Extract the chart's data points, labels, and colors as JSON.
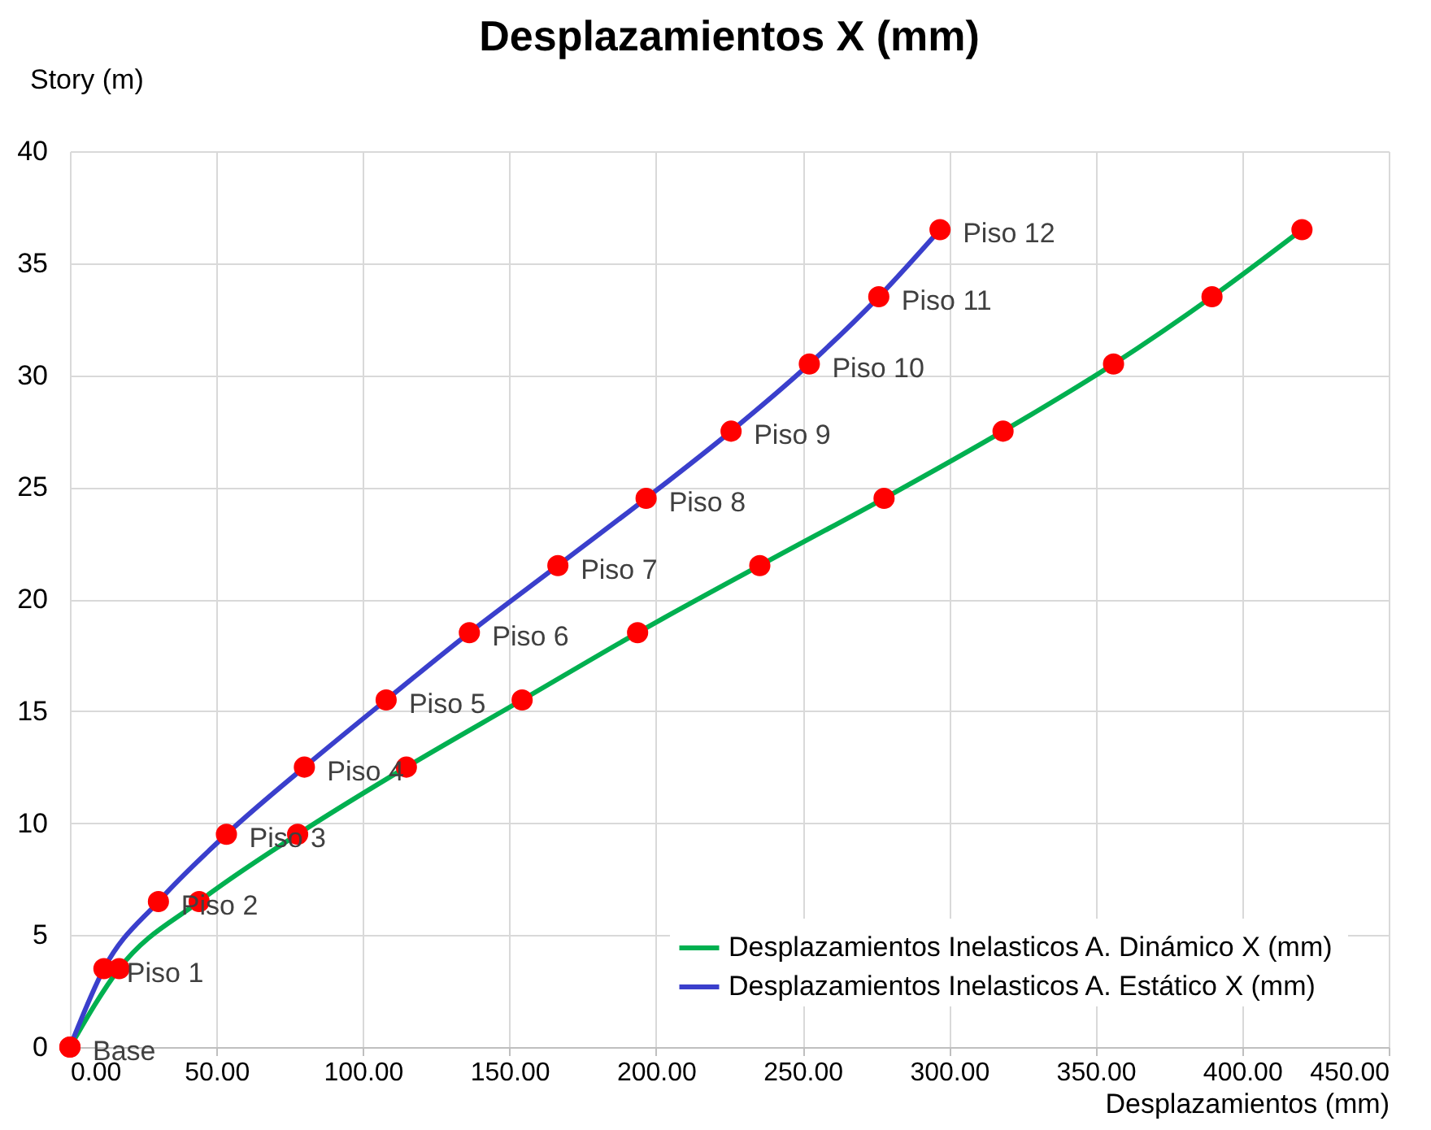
{
  "chart_data": {
    "type": "line",
    "title": "Desplazamientos X (mm)",
    "xlabel": "Desplazamientos (mm)",
    "ylabel": "Story (m)",
    "series": [
      {
        "name": "Desplazamientos Inelasticos A. Dinámico  X (mm)",
        "color": "#00b050",
        "x": [
          0,
          16.8,
          44.1,
          77.7,
          114.8,
          154.3,
          193.7,
          235.4,
          277.8,
          318.4,
          356.1,
          389.7,
          420.4
        ],
        "values": [
          0,
          3.5,
          6.5,
          9.5,
          12.5,
          15.5,
          18.5,
          21.5,
          24.5,
          27.5,
          30.5,
          33.5,
          36.5
        ]
      },
      {
        "name": "Desplazamientos Inelasticos A. Estático  X (mm)",
        "color": "#3a3fcc",
        "x": [
          0,
          11.6,
          30.2,
          53.4,
          80.0,
          107.9,
          136.3,
          166.5,
          196.6,
          225.6,
          252.3,
          276.0,
          296.9
        ],
        "values": [
          0,
          3.5,
          6.5,
          9.5,
          12.5,
          15.5,
          18.5,
          21.5,
          24.5,
          27.5,
          30.5,
          33.5,
          36.5
        ]
      }
    ],
    "annotations": [
      {
        "text": "Base",
        "x": 0,
        "y": 0
      },
      {
        "text": "Piso 1",
        "x": 11.6,
        "y": 3.5
      },
      {
        "text": "Piso 2",
        "x": 30.2,
        "y": 6.5
      },
      {
        "text": "Piso 3",
        "x": 53.4,
        "y": 9.5
      },
      {
        "text": "Piso 4",
        "x": 80.0,
        "y": 12.5
      },
      {
        "text": "Piso 5",
        "x": 107.9,
        "y": 15.5
      },
      {
        "text": "Piso 6",
        "x": 136.3,
        "y": 18.5
      },
      {
        "text": "Piso 7",
        "x": 166.5,
        "y": 21.5
      },
      {
        "text": "Piso 8",
        "x": 196.6,
        "y": 24.5
      },
      {
        "text": "Piso 9",
        "x": 225.6,
        "y": 27.5
      },
      {
        "text": "Piso 10",
        "x": 252.3,
        "y": 30.5
      },
      {
        "text": "Piso 11",
        "x": 276.0,
        "y": 33.5
      },
      {
        "text": "Piso 12",
        "x": 296.9,
        "y": 36.5
      }
    ],
    "xlim": [
      0,
      450
    ],
    "xticks": [
      {
        "value": 0,
        "label": "0.00"
      },
      {
        "value": 50,
        "label": "50.00"
      },
      {
        "value": 100,
        "label": "100.00"
      },
      {
        "value": 150,
        "label": "150.00"
      },
      {
        "value": 200,
        "label": "200.00"
      },
      {
        "value": 250,
        "label": "250.00"
      },
      {
        "value": 300,
        "label": "300.00"
      },
      {
        "value": 350,
        "label": "350.00"
      },
      {
        "value": 400,
        "label": "400.00"
      },
      {
        "value": 450,
        "label": "450.00"
      }
    ],
    "ylim": [
      0,
      40
    ],
    "yticks": [
      0,
      5,
      10,
      15,
      20,
      25,
      30,
      35,
      40
    ],
    "grid": true,
    "legend": "bottom right",
    "marker": "circle",
    "line_style": "solid"
  }
}
